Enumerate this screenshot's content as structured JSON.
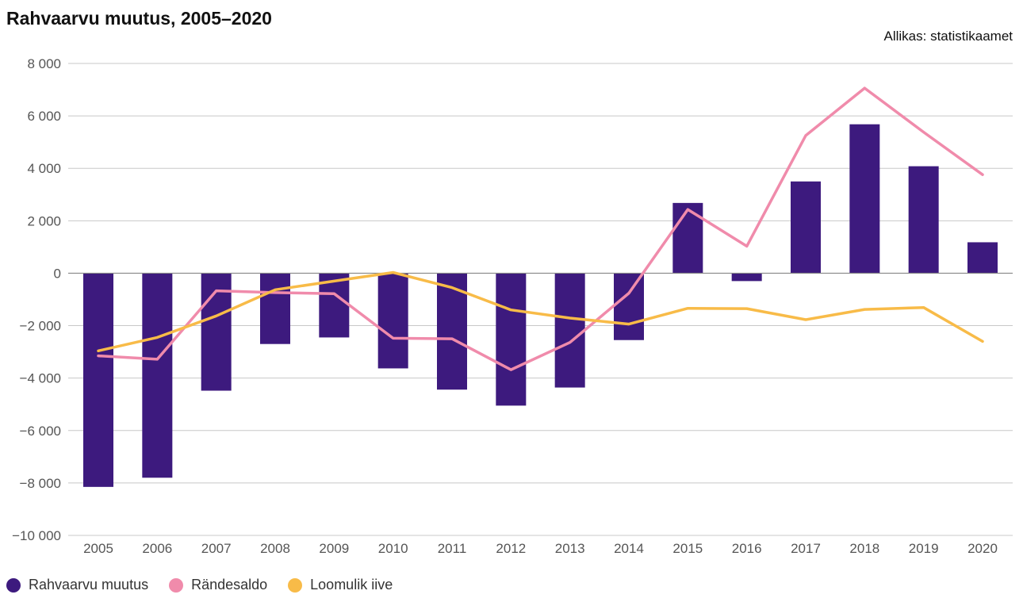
{
  "title": "Rahvaarvu muutus, 2005–2020",
  "source": "Allikas: statistikaamet",
  "colors": {
    "bars": "#3d1a7e",
    "migration": "#f08bab",
    "natural": "#f8bb48",
    "grid": "#c8c8c8",
    "axis": "#888888"
  },
  "chart_data": {
    "type": "bar",
    "title": "Rahvaarvu muutus, 2005–2020",
    "xlabel": "",
    "ylabel": "",
    "ylim": [
      -10000,
      8000
    ],
    "yticks": [
      8000,
      6000,
      4000,
      2000,
      0,
      -2000,
      -4000,
      -6000,
      -8000,
      -10000
    ],
    "ytick_labels": [
      "8 000",
      "6 000",
      "4 000",
      "2 000",
      "0",
      "−2 000",
      "−4 000",
      "−6 000",
      "−8 000",
      "−10 000"
    ],
    "grid": true,
    "legend_position": "bottom-left",
    "categories": [
      "2005",
      "2006",
      "2007",
      "2008",
      "2009",
      "2010",
      "2011",
      "2012",
      "2013",
      "2014",
      "2015",
      "2016",
      "2017",
      "2018",
      "2019",
      "2020"
    ],
    "series": [
      {
        "name": "Rahvaarvu muutus",
        "kind": "bar",
        "values": [
          -8150,
          -7800,
          -4480,
          -2700,
          -2450,
          -3630,
          -4440,
          -5050,
          -4360,
          -2550,
          2680,
          -300,
          3500,
          5680,
          4080,
          1180
        ]
      },
      {
        "name": "Rändesaldo",
        "kind": "line",
        "values": [
          -3150,
          -3280,
          -670,
          -740,
          -780,
          -2480,
          -2500,
          -3680,
          -2640,
          -760,
          2430,
          1030,
          5250,
          7060,
          5380,
          3760
        ]
      },
      {
        "name": "Loomulik iive",
        "kind": "line",
        "values": [
          -2960,
          -2450,
          -1630,
          -630,
          -300,
          30,
          -550,
          -1400,
          -1710,
          -1940,
          -1340,
          -1350,
          -1770,
          -1380,
          -1310,
          -2600
        ]
      }
    ]
  }
}
